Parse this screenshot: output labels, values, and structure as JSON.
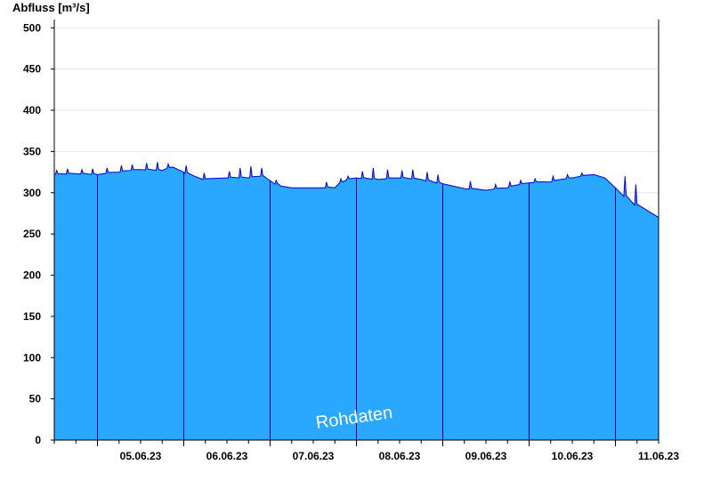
{
  "chart_data": {
    "type": "area",
    "ylabel": "Abfluss [m³/s]",
    "ylim": [
      0,
      510
    ],
    "yticks": [
      0,
      50,
      100,
      150,
      200,
      250,
      300,
      350,
      400,
      450,
      500
    ],
    "xlim": [
      "2023-06-04T12:00",
      "2023-06-11T12:00"
    ],
    "day_boundaries": [
      "2023-06-05",
      "2023-06-06",
      "2023-06-07",
      "2023-06-08",
      "2023-06-09",
      "2023-06-10",
      "2023-06-11"
    ],
    "xtick_labels": [
      "05.06.23",
      "06.06.23",
      "07.06.23",
      "08.06.23",
      "09.06.23",
      "10.06.23",
      "11.06.23"
    ],
    "grid": true,
    "watermark": "Rohdaten",
    "colors": {
      "fill": "#2aa7ff",
      "line": "#0000cc",
      "dayline": "#000088",
      "grid": "#e8e8e8"
    },
    "series": [
      {
        "x": [
          "2023-06-04T12:00",
          "2023-06-04T18:00",
          "2023-06-05T00:00",
          "2023-06-05T06:00",
          "2023-06-05T12:00",
          "2023-06-05T18:00",
          "2023-06-05T21:00",
          "2023-06-06T00:00",
          "2023-06-06T03:00",
          "2023-06-06T06:00",
          "2023-06-06T12:00",
          "2023-06-06T18:00",
          "2023-06-06T22:00",
          "2023-06-07T03:00",
          "2023-06-07T06:00",
          "2023-06-07T12:00",
          "2023-06-07T18:00",
          "2023-06-07T21:00",
          "2023-06-08T00:00",
          "2023-06-08T06:00",
          "2023-06-08T12:00",
          "2023-06-08T18:00",
          "2023-06-09T00:00",
          "2023-06-09T06:00",
          "2023-06-09T12:00",
          "2023-06-09T18:00",
          "2023-06-10T00:00",
          "2023-06-10T06:00",
          "2023-06-10T12:00",
          "2023-06-10T18:00",
          "2023-06-10T21:00",
          "2023-06-11T00:00",
          "2023-06-11T06:00",
          "2023-06-11T12:00"
        ],
        "y": [
          322,
          323,
          322,
          325,
          328,
          327,
          331,
          325,
          320,
          316,
          318,
          318,
          320,
          308,
          306,
          306,
          306,
          315,
          318,
          316,
          318,
          316,
          311,
          305,
          303,
          306,
          312,
          313,
          318,
          322,
          318,
          306,
          285,
          270
        ]
      }
    ],
    "spikes": [
      [
        "2023-06-04T13:00",
        327
      ],
      [
        "2023-06-04T16:00",
        329
      ],
      [
        "2023-06-04T20:00",
        328
      ],
      [
        "2023-06-04T23:00",
        329
      ],
      [
        "2023-06-05T03:00",
        330
      ],
      [
        "2023-06-05T07:00",
        333
      ],
      [
        "2023-06-05T10:00",
        334
      ],
      [
        "2023-06-05T14:00",
        336
      ],
      [
        "2023-06-05T17:00",
        337
      ],
      [
        "2023-06-05T20:00",
        335
      ],
      [
        "2023-06-06T01:00",
        333
      ],
      [
        "2023-06-06T06:00",
        324
      ],
      [
        "2023-06-06T13:00",
        326
      ],
      [
        "2023-06-06T16:00",
        330
      ],
      [
        "2023-06-06T19:00",
        332
      ],
      [
        "2023-06-06T22:00",
        330
      ],
      [
        "2023-06-07T02:00",
        315
      ],
      [
        "2023-06-07T16:00",
        313
      ],
      [
        "2023-06-07T20:00",
        317
      ],
      [
        "2023-06-07T22:00",
        320
      ],
      [
        "2023-06-08T02:00",
        326
      ],
      [
        "2023-06-08T05:00",
        330
      ],
      [
        "2023-06-08T09:00",
        328
      ],
      [
        "2023-06-08T13:00",
        327
      ],
      [
        "2023-06-08T16:00",
        328
      ],
      [
        "2023-06-08T20:00",
        325
      ],
      [
        "2023-06-08T23:00",
        322
      ],
      [
        "2023-06-09T08:00",
        314
      ],
      [
        "2023-06-09T15:00",
        310
      ],
      [
        "2023-06-09T19:00",
        313
      ],
      [
        "2023-06-09T22:00",
        315
      ],
      [
        "2023-06-10T02:00",
        317
      ],
      [
        "2023-06-10T07:00",
        320
      ],
      [
        "2023-06-10T11:00",
        322
      ],
      [
        "2023-06-10T15:00",
        324
      ],
      [
        "2023-06-11T03:00",
        320
      ],
      [
        "2023-06-11T06:00",
        310
      ]
    ]
  }
}
